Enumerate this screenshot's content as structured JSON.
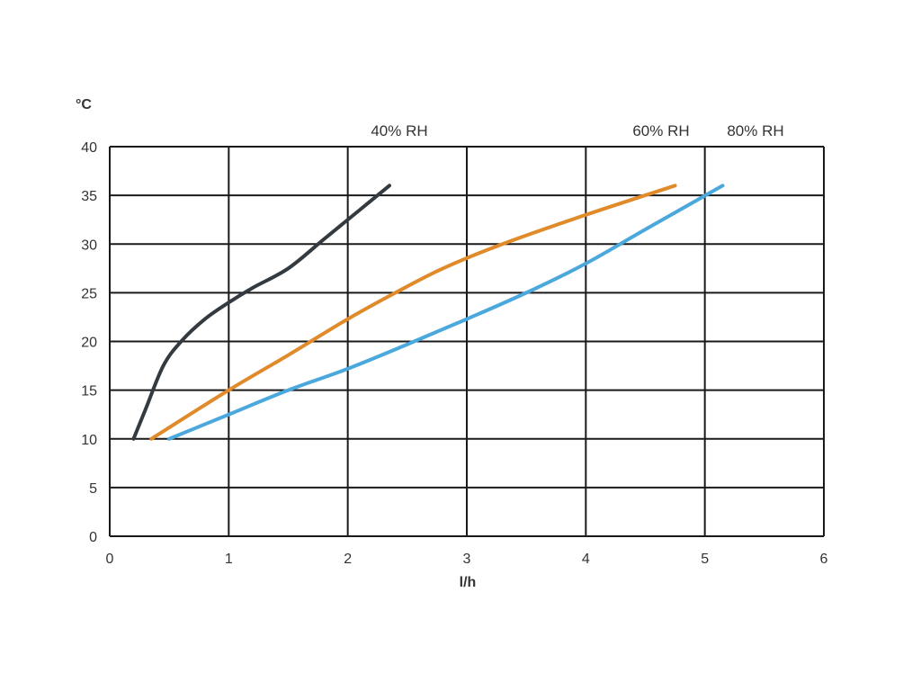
{
  "chart_data": {
    "type": "line",
    "ylabel": "°C",
    "xlabel": "l/h",
    "xlim": [
      0,
      6
    ],
    "ylim": [
      0,
      40
    ],
    "x_ticks": [
      0,
      1,
      2,
      3,
      4,
      5,
      6
    ],
    "y_ticks": [
      0,
      5,
      10,
      15,
      20,
      25,
      30,
      35,
      40
    ],
    "x_tick_labels": [
      "0",
      "1",
      "2",
      "3",
      "4",
      "5",
      "6"
    ],
    "y_tick_labels": [
      "0",
      "5",
      "10",
      "15",
      "20",
      "25",
      "30",
      "35",
      "40"
    ],
    "grid": true,
    "series": [
      {
        "name": "40% RH",
        "color": "#333a40",
        "x": [
          0.2,
          0.3,
          0.45,
          0.6,
          0.8,
          1.0,
          1.2,
          1.5,
          1.8,
          2.1,
          2.35
        ],
        "y": [
          10,
          13,
          17.5,
          20,
          22.3,
          24,
          25.5,
          27.5,
          30.5,
          33.5,
          36
        ]
      },
      {
        "name": "60% RH",
        "color": "#e08a2a",
        "x": [
          0.35,
          1.0,
          1.5,
          2.0,
          2.4,
          2.8,
          3.3,
          4.0,
          4.75
        ],
        "y": [
          10,
          15,
          18.6,
          22.3,
          25,
          27.5,
          30,
          33,
          36
        ]
      },
      {
        "name": "80% RH",
        "color": "#4aa8dc",
        "x": [
          0.5,
          1.0,
          1.5,
          2.0,
          2.5,
          3.0,
          3.5,
          4.0,
          4.5,
          5.15
        ],
        "y": [
          10,
          12.5,
          15,
          17.2,
          19.7,
          22.3,
          25,
          28,
          31.5,
          36
        ]
      }
    ]
  }
}
